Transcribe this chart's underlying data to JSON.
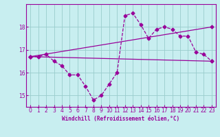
{
  "xlabel": "Windchill (Refroidissement éolien,°C)",
  "xlim": [
    -0.5,
    23.5
  ],
  "ylim": [
    14.5,
    19.0
  ],
  "yticks": [
    15,
    16,
    17,
    18
  ],
  "xticks": [
    0,
    1,
    2,
    3,
    4,
    5,
    6,
    7,
    8,
    9,
    10,
    11,
    12,
    13,
    14,
    15,
    16,
    17,
    18,
    19,
    20,
    21,
    22,
    23
  ],
  "bg_color": "#c8eef0",
  "grid_color": "#99cccc",
  "line_color": "#990099",
  "series_wiggly": [
    [
      0,
      16.7
    ],
    [
      1,
      16.7
    ],
    [
      2,
      16.8
    ],
    [
      3,
      16.5
    ],
    [
      4,
      16.3
    ],
    [
      5,
      15.9
    ],
    [
      6,
      15.9
    ],
    [
      7,
      15.4
    ],
    [
      8,
      14.8
    ],
    [
      9,
      15.0
    ],
    [
      10,
      15.5
    ],
    [
      11,
      16.0
    ],
    [
      12,
      18.5
    ],
    [
      13,
      18.6
    ],
    [
      14,
      18.1
    ],
    [
      15,
      17.5
    ],
    [
      16,
      17.9
    ],
    [
      17,
      18.0
    ],
    [
      18,
      17.9
    ],
    [
      19,
      17.6
    ],
    [
      20,
      17.6
    ],
    [
      21,
      16.9
    ],
    [
      22,
      16.8
    ],
    [
      23,
      16.5
    ]
  ],
  "series_upper": [
    [
      0,
      16.7
    ],
    [
      23,
      18.0
    ]
  ],
  "series_lower": [
    [
      0,
      16.7
    ],
    [
      23,
      16.5
    ]
  ]
}
